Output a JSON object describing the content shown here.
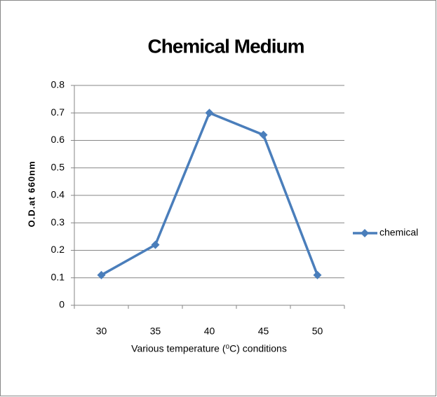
{
  "chart_data": {
    "type": "line",
    "title": "Chemical Medium",
    "x_label": "Various temperature (⁰C) conditions",
    "y_label": "O.D.at 660nm",
    "categories": [
      "30",
      "35",
      "40",
      "45",
      "50"
    ],
    "series": [
      {
        "name": "chemical",
        "color": "#4a7ebb",
        "values": [
          0.11,
          0.22,
          0.7,
          0.62,
          0.11
        ]
      }
    ],
    "ylim": [
      0,
      0.8
    ],
    "yticks": [
      0,
      0.1,
      0.2,
      0.3,
      0.4,
      0.5,
      0.6,
      0.7,
      0.8
    ],
    "grid": true,
    "legend": "right"
  }
}
